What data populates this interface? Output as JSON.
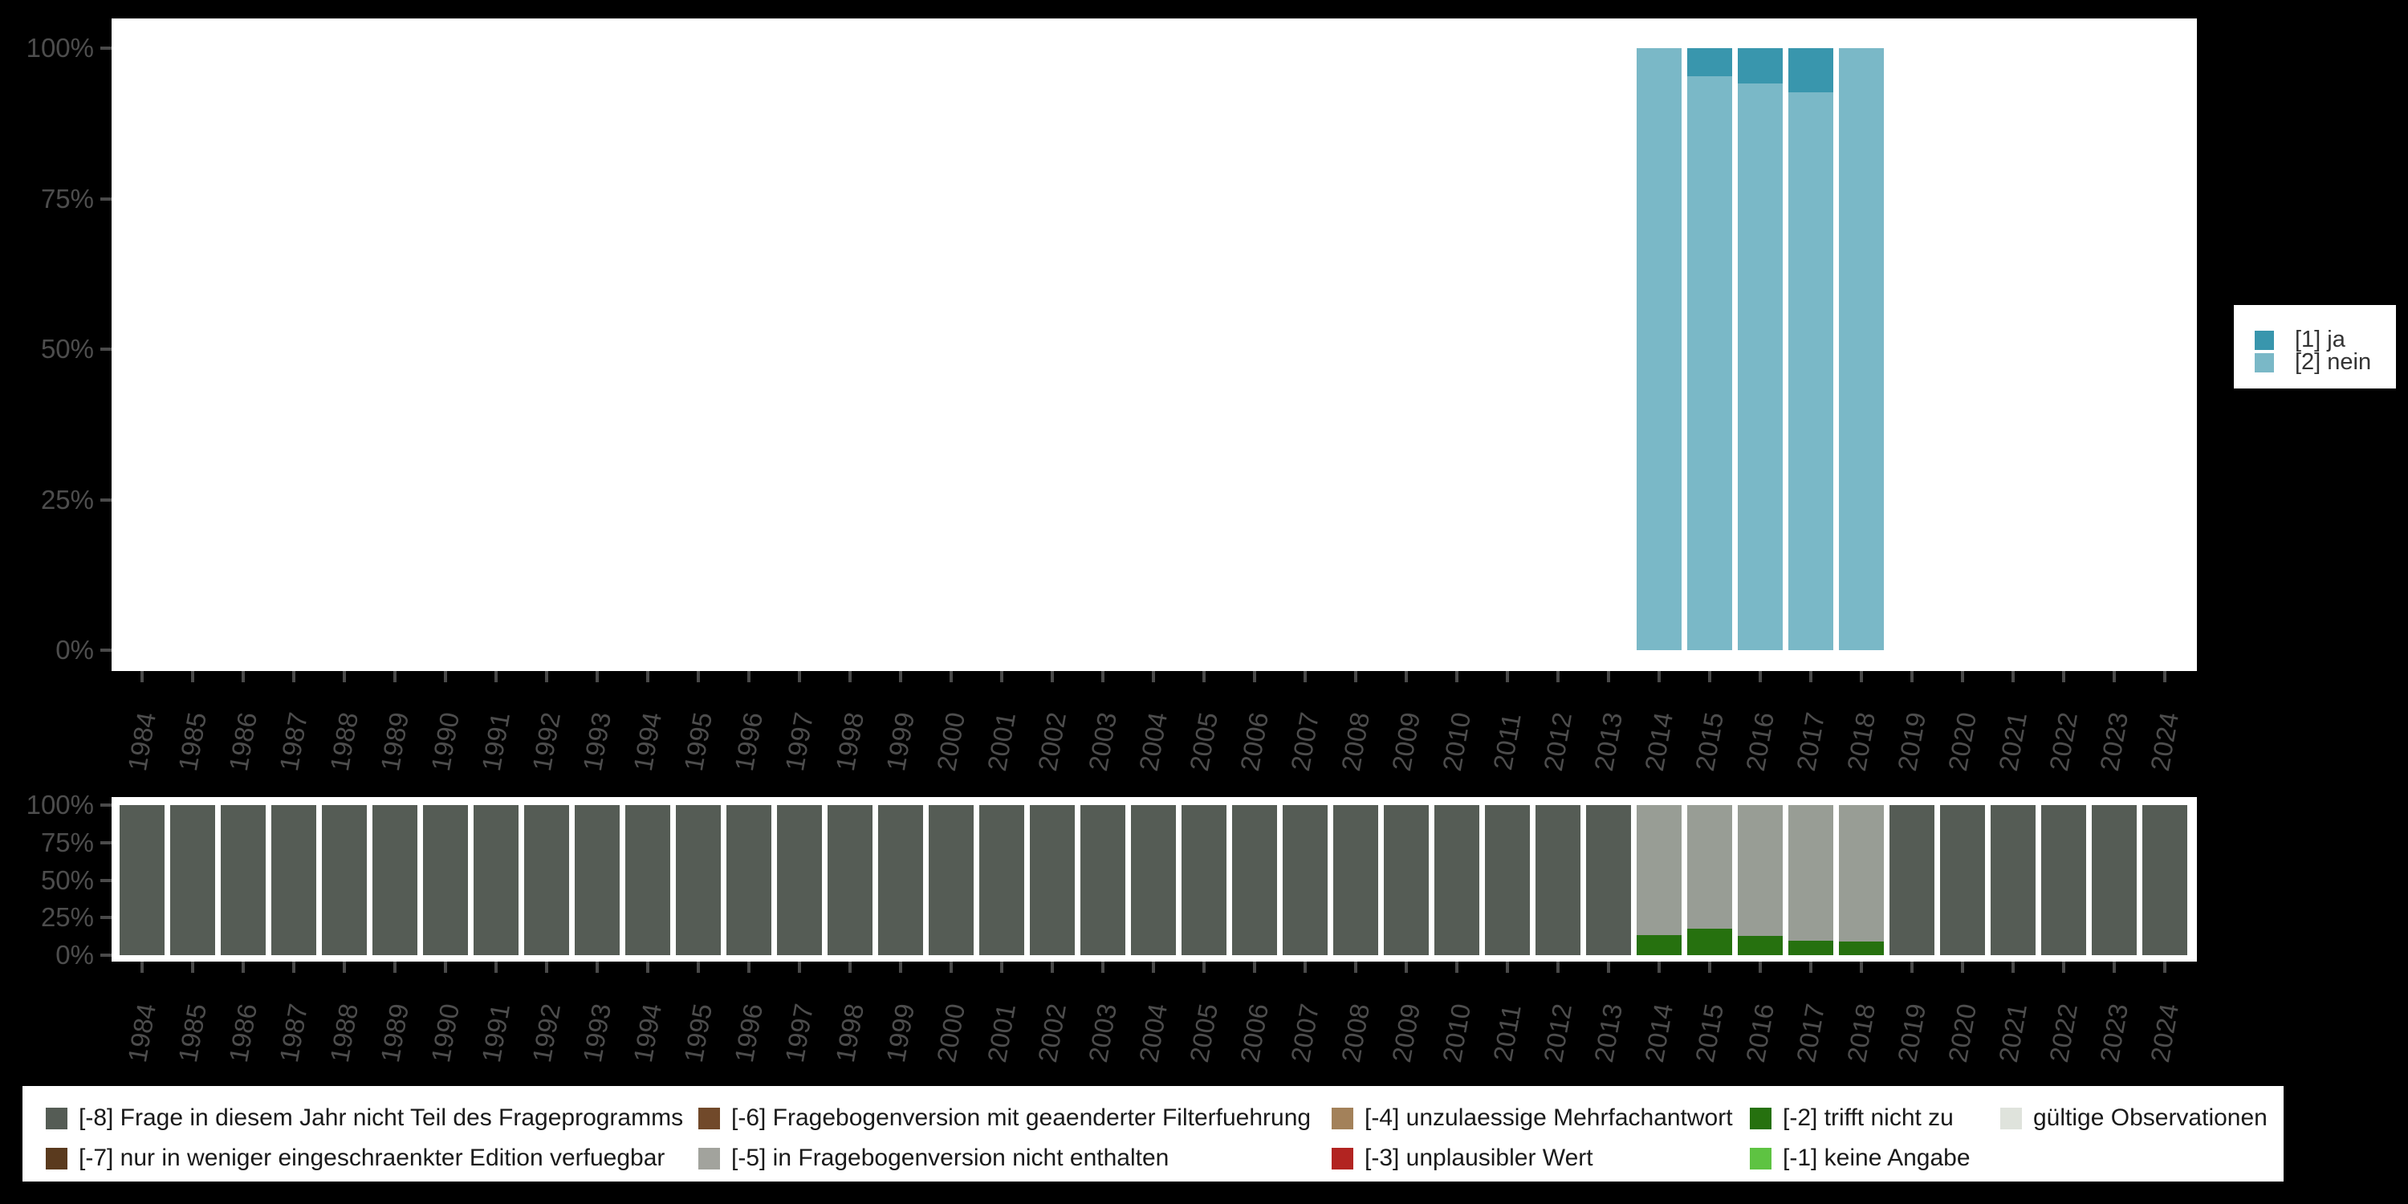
{
  "colors": {
    "background": "#000000",
    "panel": "#ffffff",
    "axis_text": "#4d4d4d",
    "ja_blue": "#3996ad",
    "nein_blue": "#7ab8c7",
    "missing_dark": "#555c55",
    "notin_gray": "#989d95",
    "trifft_green": "#26710f"
  },
  "y_ticks": [
    "100%",
    "75%",
    "50%",
    "25%",
    "0%"
  ],
  "right_legend": {
    "items": [
      {
        "code": "1",
        "label": "[1] ja",
        "color": "#3996ad"
      },
      {
        "code": "2",
        "label": "[2] nein",
        "color": "#7ab8c7"
      }
    ]
  },
  "bottom_legend": {
    "items": [
      {
        "code": "-8",
        "label": "[-8] Frage in diesem Jahr nicht Teil des Frageprogramms",
        "color": "#555c55",
        "col": 0,
        "row": 0
      },
      {
        "code": "-7",
        "label": "[-7] nur in weniger eingeschraenkter Edition verfuegbar",
        "color": "#5a3a1e",
        "col": 0,
        "row": 1
      },
      {
        "code": "-6",
        "label": "[-6] Fragebogenversion mit geaenderter Filterfuehrung",
        "color": "#71492a",
        "col": 1,
        "row": 0
      },
      {
        "code": "-5",
        "label": "[-5] in Fragebogenversion nicht enthalten",
        "color": "#a2a39d",
        "col": 1,
        "row": 1
      },
      {
        "code": "-4",
        "label": "[-4] unzulaessige Mehrfachantwort",
        "color": "#a3815a",
        "col": 2,
        "row": 0
      },
      {
        "code": "-3",
        "label": "[-3] unplausibler Wert",
        "color": "#b22421",
        "col": 2,
        "row": 1
      },
      {
        "code": "-2",
        "label": "[-2] trifft nicht zu",
        "color": "#26710f",
        "col": 3,
        "row": 0
      },
      {
        "code": "-1",
        "label": "[-1] keine Angabe",
        "color": "#5ec342",
        "col": 3,
        "row": 1
      },
      {
        "code": "valid",
        "label": "gültige Observationen",
        "color": "#dfe3dc",
        "col": 4,
        "row": 0
      }
    ]
  },
  "chart_data": [
    {
      "type": "bar",
      "stacked": true,
      "title": "",
      "xlabel": "",
      "ylabel": "",
      "ylim": [
        0,
        100
      ],
      "y_ticks": [
        "0%",
        "25%",
        "50%",
        "75%",
        "100%"
      ],
      "grid": false,
      "legend_position": "right",
      "stack_order": "bottom_to_top",
      "x": [
        "1984",
        "1985",
        "1986",
        "1987",
        "1988",
        "1989",
        "1990",
        "1991",
        "1992",
        "1993",
        "1994",
        "1995",
        "1996",
        "1997",
        "1998",
        "1999",
        "2000",
        "2001",
        "2002",
        "2003",
        "2004",
        "2005",
        "2006",
        "2007",
        "2008",
        "2009",
        "2010",
        "2011",
        "2012",
        "2013",
        "2014",
        "2015",
        "2016",
        "2017",
        "2018",
        "2019",
        "2020",
        "2021",
        "2022",
        "2023",
        "2024"
      ],
      "series": [
        {
          "name": "[2] nein",
          "color": "#7ab8c7",
          "values": [
            0,
            0,
            0,
            0,
            0,
            0,
            0,
            0,
            0,
            0,
            0,
            0,
            0,
            0,
            0,
            0,
            0,
            0,
            0,
            0,
            0,
            0,
            0,
            0,
            0,
            0,
            0,
            0,
            0,
            0,
            100,
            95.4,
            94.2,
            92.7,
            100,
            0,
            0,
            0,
            0,
            0,
            0
          ]
        },
        {
          "name": "[1] ja",
          "color": "#3996ad",
          "values": [
            0,
            0,
            0,
            0,
            0,
            0,
            0,
            0,
            0,
            0,
            0,
            0,
            0,
            0,
            0,
            0,
            0,
            0,
            0,
            0,
            0,
            0,
            0,
            0,
            0,
            0,
            0,
            0,
            0,
            0,
            0,
            4.6,
            5.8,
            7.3,
            0,
            0,
            0,
            0,
            0,
            0,
            0
          ]
        }
      ]
    },
    {
      "type": "bar",
      "stacked": true,
      "title": "",
      "xlabel": "",
      "ylabel": "",
      "ylim": [
        0,
        100
      ],
      "y_ticks": [
        "0%",
        "25%",
        "50%",
        "75%",
        "100%"
      ],
      "grid": false,
      "legend_position": "bottom",
      "stack_order": "bottom_to_top",
      "x": [
        "1984",
        "1985",
        "1986",
        "1987",
        "1988",
        "1989",
        "1990",
        "1991",
        "1992",
        "1993",
        "1994",
        "1995",
        "1996",
        "1997",
        "1998",
        "1999",
        "2000",
        "2001",
        "2002",
        "2003",
        "2004",
        "2005",
        "2006",
        "2007",
        "2008",
        "2009",
        "2010",
        "2011",
        "2012",
        "2013",
        "2014",
        "2015",
        "2016",
        "2017",
        "2018",
        "2019",
        "2020",
        "2021",
        "2022",
        "2023",
        "2024"
      ],
      "series": [
        {
          "name": "[-2] trifft nicht zu",
          "color": "#26710f",
          "values": [
            0,
            0,
            0,
            0,
            0,
            0,
            0,
            0,
            0,
            0,
            0,
            0,
            0,
            0,
            0,
            0,
            0,
            0,
            0,
            0,
            0,
            0,
            0,
            0,
            0,
            0,
            0,
            0,
            0,
            0,
            13.2,
            17.6,
            12.7,
            9.5,
            9.1,
            0,
            0,
            0,
            0,
            0,
            0
          ]
        },
        {
          "name": "[-5] in Fragebogenversion nicht enthalten",
          "color": "#989d95",
          "values": [
            0,
            0,
            0,
            0,
            0,
            0,
            0,
            0,
            0,
            0,
            0,
            0,
            0,
            0,
            0,
            0,
            0,
            0,
            0,
            0,
            0,
            0,
            0,
            0,
            0,
            0,
            0,
            0,
            0,
            0,
            86.8,
            82.4,
            87.3,
            90.5,
            90.9,
            0,
            0,
            0,
            0,
            0,
            0
          ]
        },
        {
          "name": "[-8] Frage in diesem Jahr nicht Teil des Frageprogramms",
          "color": "#555c55",
          "values": [
            100,
            100,
            100,
            100,
            100,
            100,
            100,
            100,
            100,
            100,
            100,
            100,
            100,
            100,
            100,
            100,
            100,
            100,
            100,
            100,
            100,
            100,
            100,
            100,
            100,
            100,
            100,
            100,
            100,
            100,
            0,
            0,
            0,
            0,
            0,
            100,
            100,
            100,
            100,
            100,
            100
          ]
        }
      ]
    }
  ]
}
